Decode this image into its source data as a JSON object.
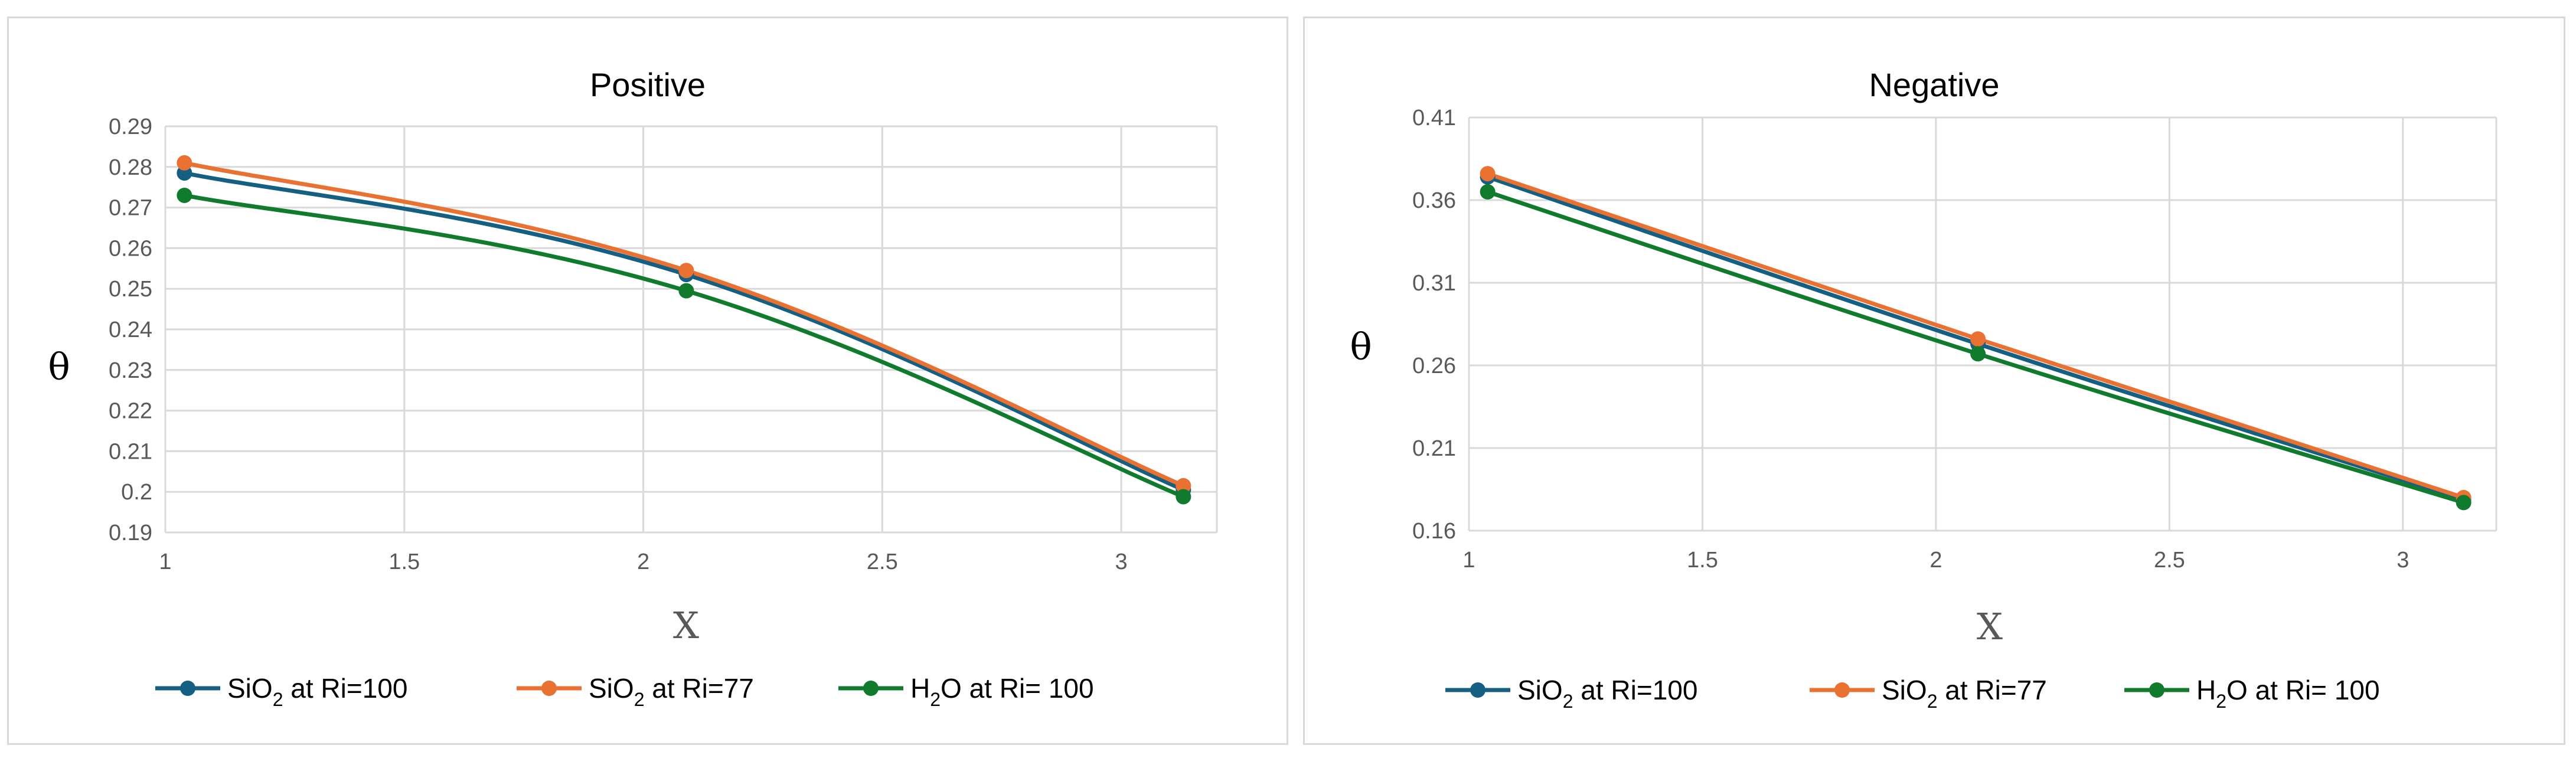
{
  "chart_data": [
    {
      "type": "line",
      "title": "Positive",
      "xlabel": "X",
      "ylabel": "θ",
      "xlim": [
        1,
        3.2
      ],
      "ylim": [
        0.19,
        0.29
      ],
      "x_ticks": [
        1,
        1.5,
        2,
        2.5,
        3
      ],
      "x_tick_labels": [
        "1",
        "1.5",
        "2",
        "2.5",
        "3"
      ],
      "y_ticks": [
        0.19,
        0.2,
        0.21,
        0.22,
        0.23,
        0.24,
        0.25,
        0.26,
        0.27,
        0.28,
        0.29
      ],
      "y_tick_labels": [
        "0.19",
        "0.2",
        "0.21",
        "0.22",
        "0.23",
        "0.24",
        "0.25",
        "0.26",
        "0.27",
        "0.28",
        "0.29"
      ],
      "grid": true,
      "legend_position": "bottom",
      "series": [
        {
          "name_main": "SiO",
          "name_sub": "2",
          "name_rest": " at Ri=100",
          "color": "#156082",
          "x": [
            1.04,
            2.09,
            3.13
          ],
          "y": [
            0.2785,
            0.2535,
            0.2005
          ]
        },
        {
          "name_main": "SiO",
          "name_sub": "2",
          "name_rest": " at Ri=77",
          "color": "#e97132",
          "x": [
            1.04,
            2.09,
            3.13
          ],
          "y": [
            0.281,
            0.2545,
            0.2015
          ]
        },
        {
          "name_main": "H",
          "name_sub": "2",
          "name_rest": "O  at Ri= 100",
          "color": "#107b2d",
          "x": [
            1.04,
            2.09,
            3.13
          ],
          "y": [
            0.273,
            0.2495,
            0.1988
          ]
        }
      ]
    },
    {
      "type": "line",
      "title": "Negative",
      "xlabel": "X",
      "ylabel": "θ",
      "xlim": [
        1,
        3.2
      ],
      "ylim": [
        0.16,
        0.41
      ],
      "x_ticks": [
        1,
        1.5,
        2,
        2.5,
        3
      ],
      "x_tick_labels": [
        "1",
        "1.5",
        "2",
        "2.5",
        "3"
      ],
      "y_ticks": [
        0.16,
        0.21,
        0.26,
        0.31,
        0.36,
        0.41
      ],
      "y_tick_labels": [
        "0.16",
        "0.21",
        "0.26",
        "0.31",
        "0.36",
        "0.41"
      ],
      "grid": true,
      "legend_position": "bottom",
      "series": [
        {
          "name_main": "SiO",
          "name_sub": "2",
          "name_rest": " at Ri=100",
          "color": "#156082",
          "x": [
            1.04,
            2.09,
            3.13
          ],
          "y": [
            0.374,
            0.273,
            0.179
          ]
        },
        {
          "name_main": "SiO",
          "name_sub": "2",
          "name_rest": " at Ri=77",
          "color": "#e97132",
          "x": [
            1.04,
            2.09,
            3.13
          ],
          "y": [
            0.376,
            0.276,
            0.18
          ]
        },
        {
          "name_main": "H",
          "name_sub": "2",
          "name_rest": "O  at Ri= 100",
          "color": "#107b2d",
          "x": [
            1.04,
            2.09,
            3.13
          ],
          "y": [
            0.365,
            0.267,
            0.177
          ]
        }
      ]
    }
  ]
}
